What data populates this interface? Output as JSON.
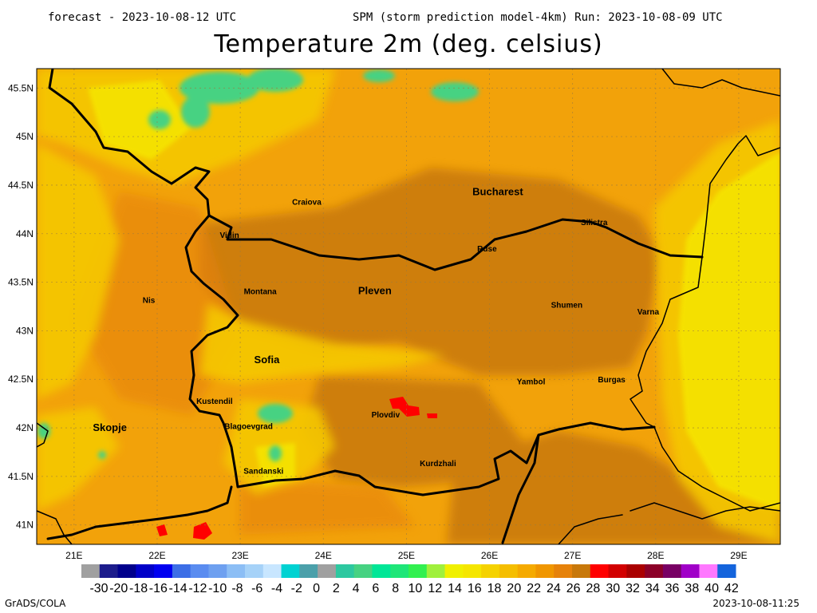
{
  "header": {
    "left": "forecast - 2023-10-08-12 UTC",
    "right": "SPM (storm prediction model-4km) Run: 2023-10-08-09 UTC",
    "title": "Temperature 2m (deg. celsius)"
  },
  "footer": {
    "left": "GrADS/COLA",
    "right": "2023-10-08-11:25"
  },
  "map": {
    "lat_labels": [
      "45.5N",
      "45N",
      "44.5N",
      "44N",
      "43.5N",
      "43N",
      "42.5N",
      "42N",
      "41.5N",
      "41N"
    ],
    "lat_values": [
      45.5,
      45,
      44.5,
      44,
      43.5,
      43,
      42.5,
      42,
      41.5,
      41
    ],
    "lon_labels": [
      "21E",
      "22E",
      "23E",
      "24E",
      "25E",
      "26E",
      "27E",
      "28E",
      "29E"
    ],
    "lon_values": [
      21,
      22,
      23,
      24,
      25,
      26,
      27,
      28,
      29
    ],
    "extent": {
      "lon_min": 20.55,
      "lon_max": 29.5,
      "lat_min": 40.8,
      "lat_max": 45.7
    },
    "base_color": "#f2a20a",
    "cities": [
      {
        "name": "Bucharest",
        "lon": 26.1,
        "lat": 44.43
      },
      {
        "name": "Craiova",
        "lon": 23.8,
        "lat": 44.33
      },
      {
        "name": "Vidin",
        "lon": 22.87,
        "lat": 43.99
      },
      {
        "name": "Silistra",
        "lon": 27.26,
        "lat": 44.12
      },
      {
        "name": "Ruse",
        "lon": 25.97,
        "lat": 43.85
      },
      {
        "name": "Montana",
        "lon": 23.24,
        "lat": 43.41
      },
      {
        "name": "Pleven",
        "lon": 24.62,
        "lat": 43.41
      },
      {
        "name": "Nis",
        "lon": 21.9,
        "lat": 43.32
      },
      {
        "name": "Shumen",
        "lon": 26.93,
        "lat": 43.27
      },
      {
        "name": "Varna",
        "lon": 27.91,
        "lat": 43.2
      },
      {
        "name": "Sofia",
        "lon": 23.32,
        "lat": 42.7
      },
      {
        "name": "Yambol",
        "lon": 26.5,
        "lat": 42.48
      },
      {
        "name": "Burgas",
        "lon": 27.47,
        "lat": 42.5
      },
      {
        "name": "Kustendil",
        "lon": 22.69,
        "lat": 42.28
      },
      {
        "name": "Plovdiv",
        "lon": 24.75,
        "lat": 42.14
      },
      {
        "name": "Skopje",
        "lon": 21.43,
        "lat": 42.0
      },
      {
        "name": "Blagoevgrad",
        "lon": 23.1,
        "lat": 42.02
      },
      {
        "name": "Kurdzhali",
        "lon": 25.38,
        "lat": 41.64
      },
      {
        "name": "Sandanski",
        "lon": 23.28,
        "lat": 41.56
      }
    ]
  },
  "colorbar": {
    "colors": [
      "#a0a0a0",
      "#1c1c8c",
      "#00008c",
      "#0000c8",
      "#0000f0",
      "#3c6ee6",
      "#5a8cf0",
      "#6ea0f0",
      "#8cbef5",
      "#a6d2f8",
      "#c8e6ff",
      "#00d2d2",
      "#4ba0aa",
      "#a0a0a0",
      "#2dc8a0",
      "#46d282",
      "#00e696",
      "#1ee678",
      "#32f050",
      "#a0f03c",
      "#f0f000",
      "#f5e600",
      "#f5d200",
      "#f5be00",
      "#f5aa00",
      "#f09600",
      "#e6820a",
      "#c8780a",
      "#ff0000",
      "#d20000",
      "#aa0000",
      "#8c0028",
      "#780064",
      "#a000c8",
      "#ff78ff",
      "#1464dc"
    ],
    "labels": [
      "-30",
      "-20",
      "-18",
      "-16",
      "-14",
      "-12",
      "-10",
      "-8",
      "-6",
      "-4",
      "-2",
      "0",
      "2",
      "4",
      "6",
      "8",
      "10",
      "12",
      "14",
      "16",
      "18",
      "20",
      "22",
      "24",
      "26",
      "28",
      "30",
      "32",
      "34",
      "36",
      "38",
      "40",
      "42"
    ]
  }
}
